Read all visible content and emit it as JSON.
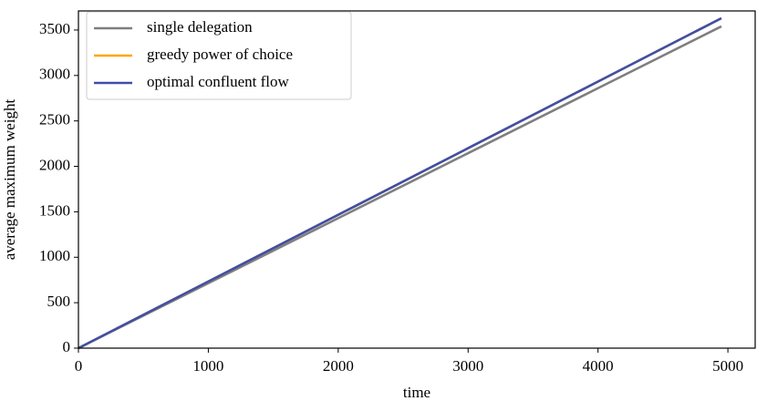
{
  "chart_data": {
    "type": "line",
    "x_label": "time",
    "y_label": "average maximum weight",
    "x": [
      0,
      1000,
      2000,
      3000,
      4000,
      4950
    ],
    "series": [
      {
        "name": "single delegation",
        "color": "#7f7f7f",
        "values": [
          0,
          715,
          1430,
          2145,
          2860,
          3540
        ]
      },
      {
        "name": "greedy power of choice",
        "color": "#ffa500",
        "values": [
          0,
          733,
          1467,
          2200,
          2933,
          3630
        ]
      },
      {
        "name": "optimal confluent flow",
        "color": "#3f4fa8",
        "values": [
          0,
          733,
          1467,
          2200,
          2933,
          3630
        ]
      }
    ],
    "xlim": [
      0,
      5210
    ],
    "ylim": [
      0,
      3710
    ],
    "xticks": [
      0,
      1000,
      2000,
      3000,
      4000,
      5000
    ],
    "yticks": [
      0,
      500,
      1000,
      1500,
      2000,
      2500,
      3000,
      3500
    ],
    "legend": "upper left",
    "grid": false
  }
}
